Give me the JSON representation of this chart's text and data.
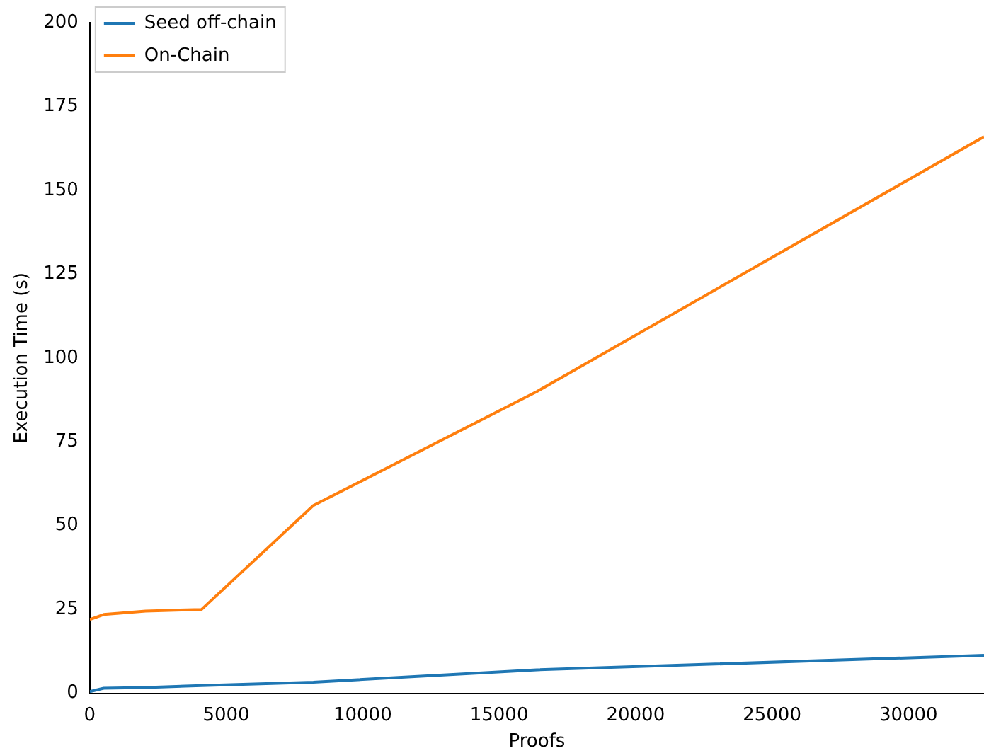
{
  "chart_data": {
    "type": "line",
    "xlabel": "Proofs",
    "ylabel": "Execution Time (s)",
    "x": [
      0,
      512,
      2048,
      4096,
      8192,
      16384,
      32768
    ],
    "series": [
      {
        "name": "Seed off-chain",
        "color": "#1f77b4",
        "values": [
          0.5,
          1.5,
          1.7,
          2.3,
          3.3,
          7,
          11.3
        ]
      },
      {
        "name": "On-Chain",
        "color": "#ff7f0e",
        "values": [
          22,
          23.5,
          24.5,
          25,
          56,
          90,
          166
        ]
      }
    ],
    "xlim": [
      0,
      32768
    ],
    "xticks": [
      0,
      5000,
      10000,
      15000,
      20000,
      25000,
      30000
    ],
    "ylim": [
      0,
      200
    ],
    "yticks": [
      0,
      25,
      50,
      75,
      100,
      125,
      150,
      175,
      200
    ],
    "grid": false,
    "legend": "top left",
    "marker": "none",
    "line_style": "solid"
  }
}
